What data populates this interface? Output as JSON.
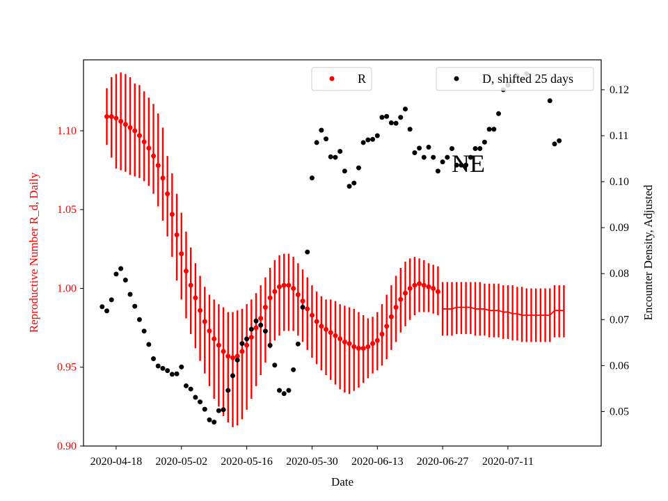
{
  "chart_data": {
    "type": "scatter",
    "xlabel": "Date",
    "ylabel_left": "Reproductive Number R_d, Daily",
    "ylabel_right": "Encounter Density, Adjusted",
    "annotation": "NE",
    "colors": {
      "r_series": "#ff0000",
      "d_series": "#000000",
      "left_axis_text": "#ff0000",
      "right_axis_text": "#000000"
    },
    "x_ticks": [
      "2020-04-18",
      "2020-05-02",
      "2020-05-16",
      "2020-05-30",
      "2020-06-13",
      "2020-06-27",
      "2020-07-11"
    ],
    "x_range": [
      "2020-04-11",
      "2020-07-31"
    ],
    "y_left_range": [
      0.9,
      1.145
    ],
    "y_left_ticks": [
      "0.90",
      "0.95",
      "1.00",
      "1.05",
      "1.10"
    ],
    "y_right_range": [
      0.0425,
      0.1265
    ],
    "y_right_ticks": [
      "0.05",
      "0.06",
      "0.07",
      "0.08",
      "0.09",
      "0.10",
      "0.11",
      "0.12"
    ],
    "legend": {
      "r_label": "R",
      "d_label": "D, shifted 25 days"
    },
    "grid": false,
    "r_series": {
      "name": "R",
      "points": [
        [
          "2020-04-16",
          1.109,
          1.091,
          1.127
        ],
        [
          "2020-04-17",
          1.109,
          1.083,
          1.134
        ],
        [
          "2020-04-18",
          1.108,
          1.076,
          1.136
        ],
        [
          "2020-04-19",
          1.106,
          1.075,
          1.137
        ],
        [
          "2020-04-20",
          1.104,
          1.074,
          1.136
        ],
        [
          "2020-04-21",
          1.102,
          1.072,
          1.134
        ],
        [
          "2020-04-22",
          1.1,
          1.071,
          1.13
        ],
        [
          "2020-04-23",
          1.097,
          1.07,
          1.129
        ],
        [
          "2020-04-24",
          1.093,
          1.068,
          1.125
        ],
        [
          "2020-04-25",
          1.089,
          1.065,
          1.121
        ],
        [
          "2020-04-26",
          1.084,
          1.06,
          1.117
        ],
        [
          "2020-04-27",
          1.078,
          1.052,
          1.111
        ],
        [
          "2020-04-28",
          1.07,
          1.043,
          1.102
        ],
        [
          "2020-04-29",
          1.06,
          1.033,
          1.084
        ],
        [
          "2020-04-30",
          1.047,
          1.02,
          1.073
        ],
        [
          "2020-05-01",
          1.034,
          1.005,
          1.06
        ],
        [
          "2020-05-02",
          1.022,
          0.993,
          1.048
        ],
        [
          "2020-05-03",
          1.011,
          0.981,
          1.036
        ],
        [
          "2020-05-04",
          1.002,
          0.971,
          1.026
        ],
        [
          "2020-05-05",
          0.994,
          0.962,
          1.016
        ],
        [
          "2020-05-06",
          0.986,
          0.954,
          1.008
        ],
        [
          "2020-05-07",
          0.979,
          0.946,
          1.001
        ],
        [
          "2020-05-08",
          0.973,
          0.938,
          0.996
        ],
        [
          "2020-05-09",
          0.968,
          0.93,
          0.993
        ],
        [
          "2020-05-10",
          0.964,
          0.925,
          0.99
        ],
        [
          "2020-05-11",
          0.96,
          0.919,
          0.988
        ],
        [
          "2020-05-12",
          0.957,
          0.915,
          0.985
        ],
        [
          "2020-05-13",
          0.956,
          0.912,
          0.985
        ],
        [
          "2020-05-14",
          0.957,
          0.913,
          0.986
        ],
        [
          "2020-05-15",
          0.96,
          0.917,
          0.987
        ],
        [
          "2020-05-16",
          0.964,
          0.923,
          0.99
        ],
        [
          "2020-05-17",
          0.969,
          0.93,
          0.993
        ],
        [
          "2020-05-18",
          0.975,
          0.938,
          0.997
        ],
        [
          "2020-05-19",
          0.981,
          0.945,
          1.002
        ],
        [
          "2020-05-20",
          0.988,
          0.953,
          1.007
        ],
        [
          "2020-05-21",
          0.994,
          0.962,
          1.013
        ],
        [
          "2020-05-22",
          0.998,
          0.967,
          1.018
        ],
        [
          "2020-05-23",
          1.001,
          0.97,
          1.021
        ],
        [
          "2020-05-24",
          1.002,
          0.973,
          1.022
        ],
        [
          "2020-05-25",
          1.002,
          0.973,
          1.022
        ],
        [
          "2020-05-26",
          1.0,
          0.973,
          1.02
        ],
        [
          "2020-05-27",
          0.996,
          0.97,
          1.016
        ],
        [
          "2020-05-28",
          0.992,
          0.966,
          1.012
        ],
        [
          "2020-05-29",
          0.987,
          0.961,
          1.007
        ],
        [
          "2020-05-30",
          0.983,
          0.956,
          1.002
        ],
        [
          "2020-05-31",
          0.979,
          0.952,
          0.998
        ],
        [
          "2020-06-01",
          0.976,
          0.948,
          0.995
        ],
        [
          "2020-06-02",
          0.974,
          0.945,
          0.993
        ],
        [
          "2020-06-03",
          0.972,
          0.942,
          0.993
        ],
        [
          "2020-06-04",
          0.97,
          0.939,
          0.992
        ],
        [
          "2020-06-05",
          0.968,
          0.936,
          0.99
        ],
        [
          "2020-06-06",
          0.966,
          0.934,
          0.989
        ],
        [
          "2020-06-07",
          0.965,
          0.933,
          0.988
        ],
        [
          "2020-06-08",
          0.963,
          0.935,
          0.987
        ],
        [
          "2020-06-09",
          0.962,
          0.937,
          0.985
        ],
        [
          "2020-06-10",
          0.962,
          0.94,
          0.983
        ],
        [
          "2020-06-11",
          0.963,
          0.943,
          0.981
        ],
        [
          "2020-06-12",
          0.965,
          0.946,
          0.982
        ],
        [
          "2020-06-13",
          0.967,
          0.948,
          0.985
        ],
        [
          "2020-06-14",
          0.971,
          0.951,
          0.99
        ],
        [
          "2020-06-15",
          0.976,
          0.955,
          0.996
        ],
        [
          "2020-06-16",
          0.982,
          0.961,
          1.002
        ],
        [
          "2020-06-17",
          0.988,
          0.966,
          1.008
        ],
        [
          "2020-06-18",
          0.993,
          0.972,
          1.013
        ],
        [
          "2020-06-19",
          0.997,
          0.976,
          1.017
        ],
        [
          "2020-06-20",
          1.0,
          0.98,
          1.019
        ],
        [
          "2020-06-21",
          1.002,
          0.983,
          1.02
        ],
        [
          "2020-06-22",
          1.003,
          0.985,
          1.019
        ],
        [
          "2020-06-23",
          1.002,
          0.985,
          1.018
        ],
        [
          "2020-06-24",
          1.001,
          0.985,
          1.016
        ],
        [
          "2020-06-25",
          1.0,
          0.984,
          1.015
        ],
        [
          "2020-06-26",
          0.998,
          0.983,
          1.014
        ]
      ],
      "tail_points": [
        [
          "2020-06-27",
          0.987,
          0.97,
          1.004
        ],
        [
          "2020-06-28",
          0.987,
          0.97,
          1.004
        ],
        [
          "2020-06-29",
          0.987,
          0.97,
          1.004
        ],
        [
          "2020-06-30",
          0.988,
          0.971,
          1.004
        ],
        [
          "2020-07-01",
          0.988,
          0.971,
          1.004
        ],
        [
          "2020-07-02",
          0.988,
          0.971,
          1.004
        ],
        [
          "2020-07-03",
          0.988,
          0.971,
          1.004
        ],
        [
          "2020-07-04",
          0.987,
          0.97,
          1.004
        ],
        [
          "2020-07-05",
          0.987,
          0.97,
          1.004
        ],
        [
          "2020-07-06",
          0.987,
          0.97,
          1.003
        ],
        [
          "2020-07-07",
          0.986,
          0.969,
          1.003
        ],
        [
          "2020-07-08",
          0.986,
          0.969,
          1.003
        ],
        [
          "2020-07-09",
          0.986,
          0.969,
          1.003
        ],
        [
          "2020-07-10",
          0.985,
          0.968,
          1.002
        ],
        [
          "2020-07-11",
          0.985,
          0.968,
          1.002
        ],
        [
          "2020-07-12",
          0.984,
          0.967,
          1.002
        ],
        [
          "2020-07-13",
          0.984,
          0.967,
          1.001
        ],
        [
          "2020-07-14",
          0.983,
          0.966,
          1.001
        ],
        [
          "2020-07-15",
          0.983,
          0.966,
          1.0
        ],
        [
          "2020-07-16",
          0.983,
          0.966,
          1.0
        ],
        [
          "2020-07-17",
          0.983,
          0.966,
          1.0
        ],
        [
          "2020-07-18",
          0.983,
          0.966,
          1.0
        ],
        [
          "2020-07-19",
          0.983,
          0.966,
          1.0
        ],
        [
          "2020-07-20",
          0.983,
          0.966,
          1.0
        ],
        [
          "2020-07-21",
          0.986,
          0.969,
          1.002
        ],
        [
          "2020-07-22",
          0.986,
          0.969,
          1.002
        ],
        [
          "2020-07-23",
          0.986,
          0.969,
          1.002
        ]
      ]
    },
    "d_series": {
      "name": "D, shifted 25 days",
      "points": [
        [
          "2020-04-15",
          0.0728
        ],
        [
          "2020-04-16",
          0.0719
        ],
        [
          "2020-04-17",
          0.0743
        ],
        [
          "2020-04-18",
          0.0799
        ],
        [
          "2020-04-19",
          0.0811
        ],
        [
          "2020-04-20",
          0.0786
        ],
        [
          "2020-04-21",
          0.0755
        ],
        [
          "2020-04-22",
          0.0729
        ],
        [
          "2020-04-23",
          0.07
        ],
        [
          "2020-04-24",
          0.0675
        ],
        [
          "2020-04-25",
          0.0646
        ],
        [
          "2020-04-26",
          0.0615
        ],
        [
          "2020-04-27",
          0.0599
        ],
        [
          "2020-04-28",
          0.0594
        ],
        [
          "2020-04-29",
          0.0589
        ],
        [
          "2020-04-30",
          0.0581
        ],
        [
          "2020-05-01",
          0.0582
        ],
        [
          "2020-05-02",
          0.0597
        ],
        [
          "2020-05-03",
          0.0556
        ],
        [
          "2020-05-04",
          0.0549
        ],
        [
          "2020-05-05",
          0.0531
        ],
        [
          "2020-05-06",
          0.0521
        ],
        [
          "2020-05-07",
          0.0505
        ],
        [
          "2020-05-08",
          0.0482
        ],
        [
          "2020-05-09",
          0.0477
        ],
        [
          "2020-05-10",
          0.0502
        ],
        [
          "2020-05-11",
          0.0504
        ],
        [
          "2020-05-12",
          0.0546
        ],
        [
          "2020-05-13",
          0.0578
        ],
        [
          "2020-05-14",
          0.0612
        ],
        [
          "2020-05-15",
          0.0648
        ],
        [
          "2020-05-16",
          0.0658
        ],
        [
          "2020-05-17",
          0.0679
        ],
        [
          "2020-05-18",
          0.0697
        ],
        [
          "2020-05-19",
          0.0688
        ],
        [
          "2020-05-20",
          0.0675
        ],
        [
          "2020-05-21",
          0.0644
        ],
        [
          "2020-05-22",
          0.0601
        ],
        [
          "2020-05-23",
          0.0546
        ],
        [
          "2020-05-24",
          0.0539
        ],
        [
          "2020-05-25",
          0.0546
        ],
        [
          "2020-05-26",
          0.0591
        ],
        [
          "2020-05-27",
          0.0647
        ],
        [
          "2020-05-28",
          0.0727
        ],
        [
          "2020-05-29",
          0.0847
        ],
        [
          "2020-05-30",
          0.1008
        ],
        [
          "2020-05-31",
          0.1085
        ],
        [
          "2020-06-01",
          0.1112
        ],
        [
          "2020-06-02",
          0.1093
        ],
        [
          "2020-06-03",
          0.1054
        ],
        [
          "2020-06-04",
          0.1053
        ],
        [
          "2020-06-05",
          0.1066
        ],
        [
          "2020-06-06",
          0.1023
        ],
        [
          "2020-06-07",
          0.099
        ],
        [
          "2020-06-08",
          0.0997
        ],
        [
          "2020-06-09",
          0.103
        ],
        [
          "2020-06-10",
          0.1085
        ],
        [
          "2020-06-11",
          0.1091
        ],
        [
          "2020-06-12",
          0.1092
        ],
        [
          "2020-06-13",
          0.11
        ],
        [
          "2020-06-14",
          0.114
        ],
        [
          "2020-06-15",
          0.1142
        ],
        [
          "2020-06-16",
          0.1128
        ],
        [
          "2020-06-17",
          0.1127
        ],
        [
          "2020-06-18",
          0.114
        ],
        [
          "2020-06-19",
          0.1158
        ],
        [
          "2020-06-20",
          0.1114
        ],
        [
          "2020-06-21",
          0.1063
        ],
        [
          "2020-06-22",
          0.1073
        ],
        [
          "2020-06-23",
          0.1053
        ],
        [
          "2020-06-24",
          0.1075
        ],
        [
          "2020-06-25",
          0.1053
        ],
        [
          "2020-06-26",
          0.1023
        ],
        [
          "2020-06-27",
          0.1043
        ],
        [
          "2020-06-28",
          0.1053
        ],
        [
          "2020-06-29",
          0.1072
        ],
        [
          "2020-06-30",
          0.1036
        ],
        [
          "2020-07-01",
          0.1036
        ],
        [
          "2020-07-02",
          0.1036
        ],
        [
          "2020-07-03",
          0.1053
        ],
        [
          "2020-07-04",
          0.1072
        ],
        [
          "2020-07-05",
          0.1072
        ],
        [
          "2020-07-06",
          0.1086
        ],
        [
          "2020-07-07",
          0.1114
        ],
        [
          "2020-07-08",
          0.1114
        ],
        [
          "2020-07-09",
          0.1148
        ],
        [
          "2020-07-10",
          0.12
        ],
        [
          "2020-07-11",
          0.121
        ],
        [
          "2020-07-12",
          0.1218
        ],
        [
          "2020-07-13",
          0.123
        ],
        [
          "2020-07-14",
          0.1222
        ],
        [
          "2020-07-15",
          0.1235
        ],
        [
          "2020-07-20",
          0.1176
        ],
        [
          "2020-07-21",
          0.1082
        ],
        [
          "2020-07-22",
          0.1089
        ]
      ]
    }
  }
}
